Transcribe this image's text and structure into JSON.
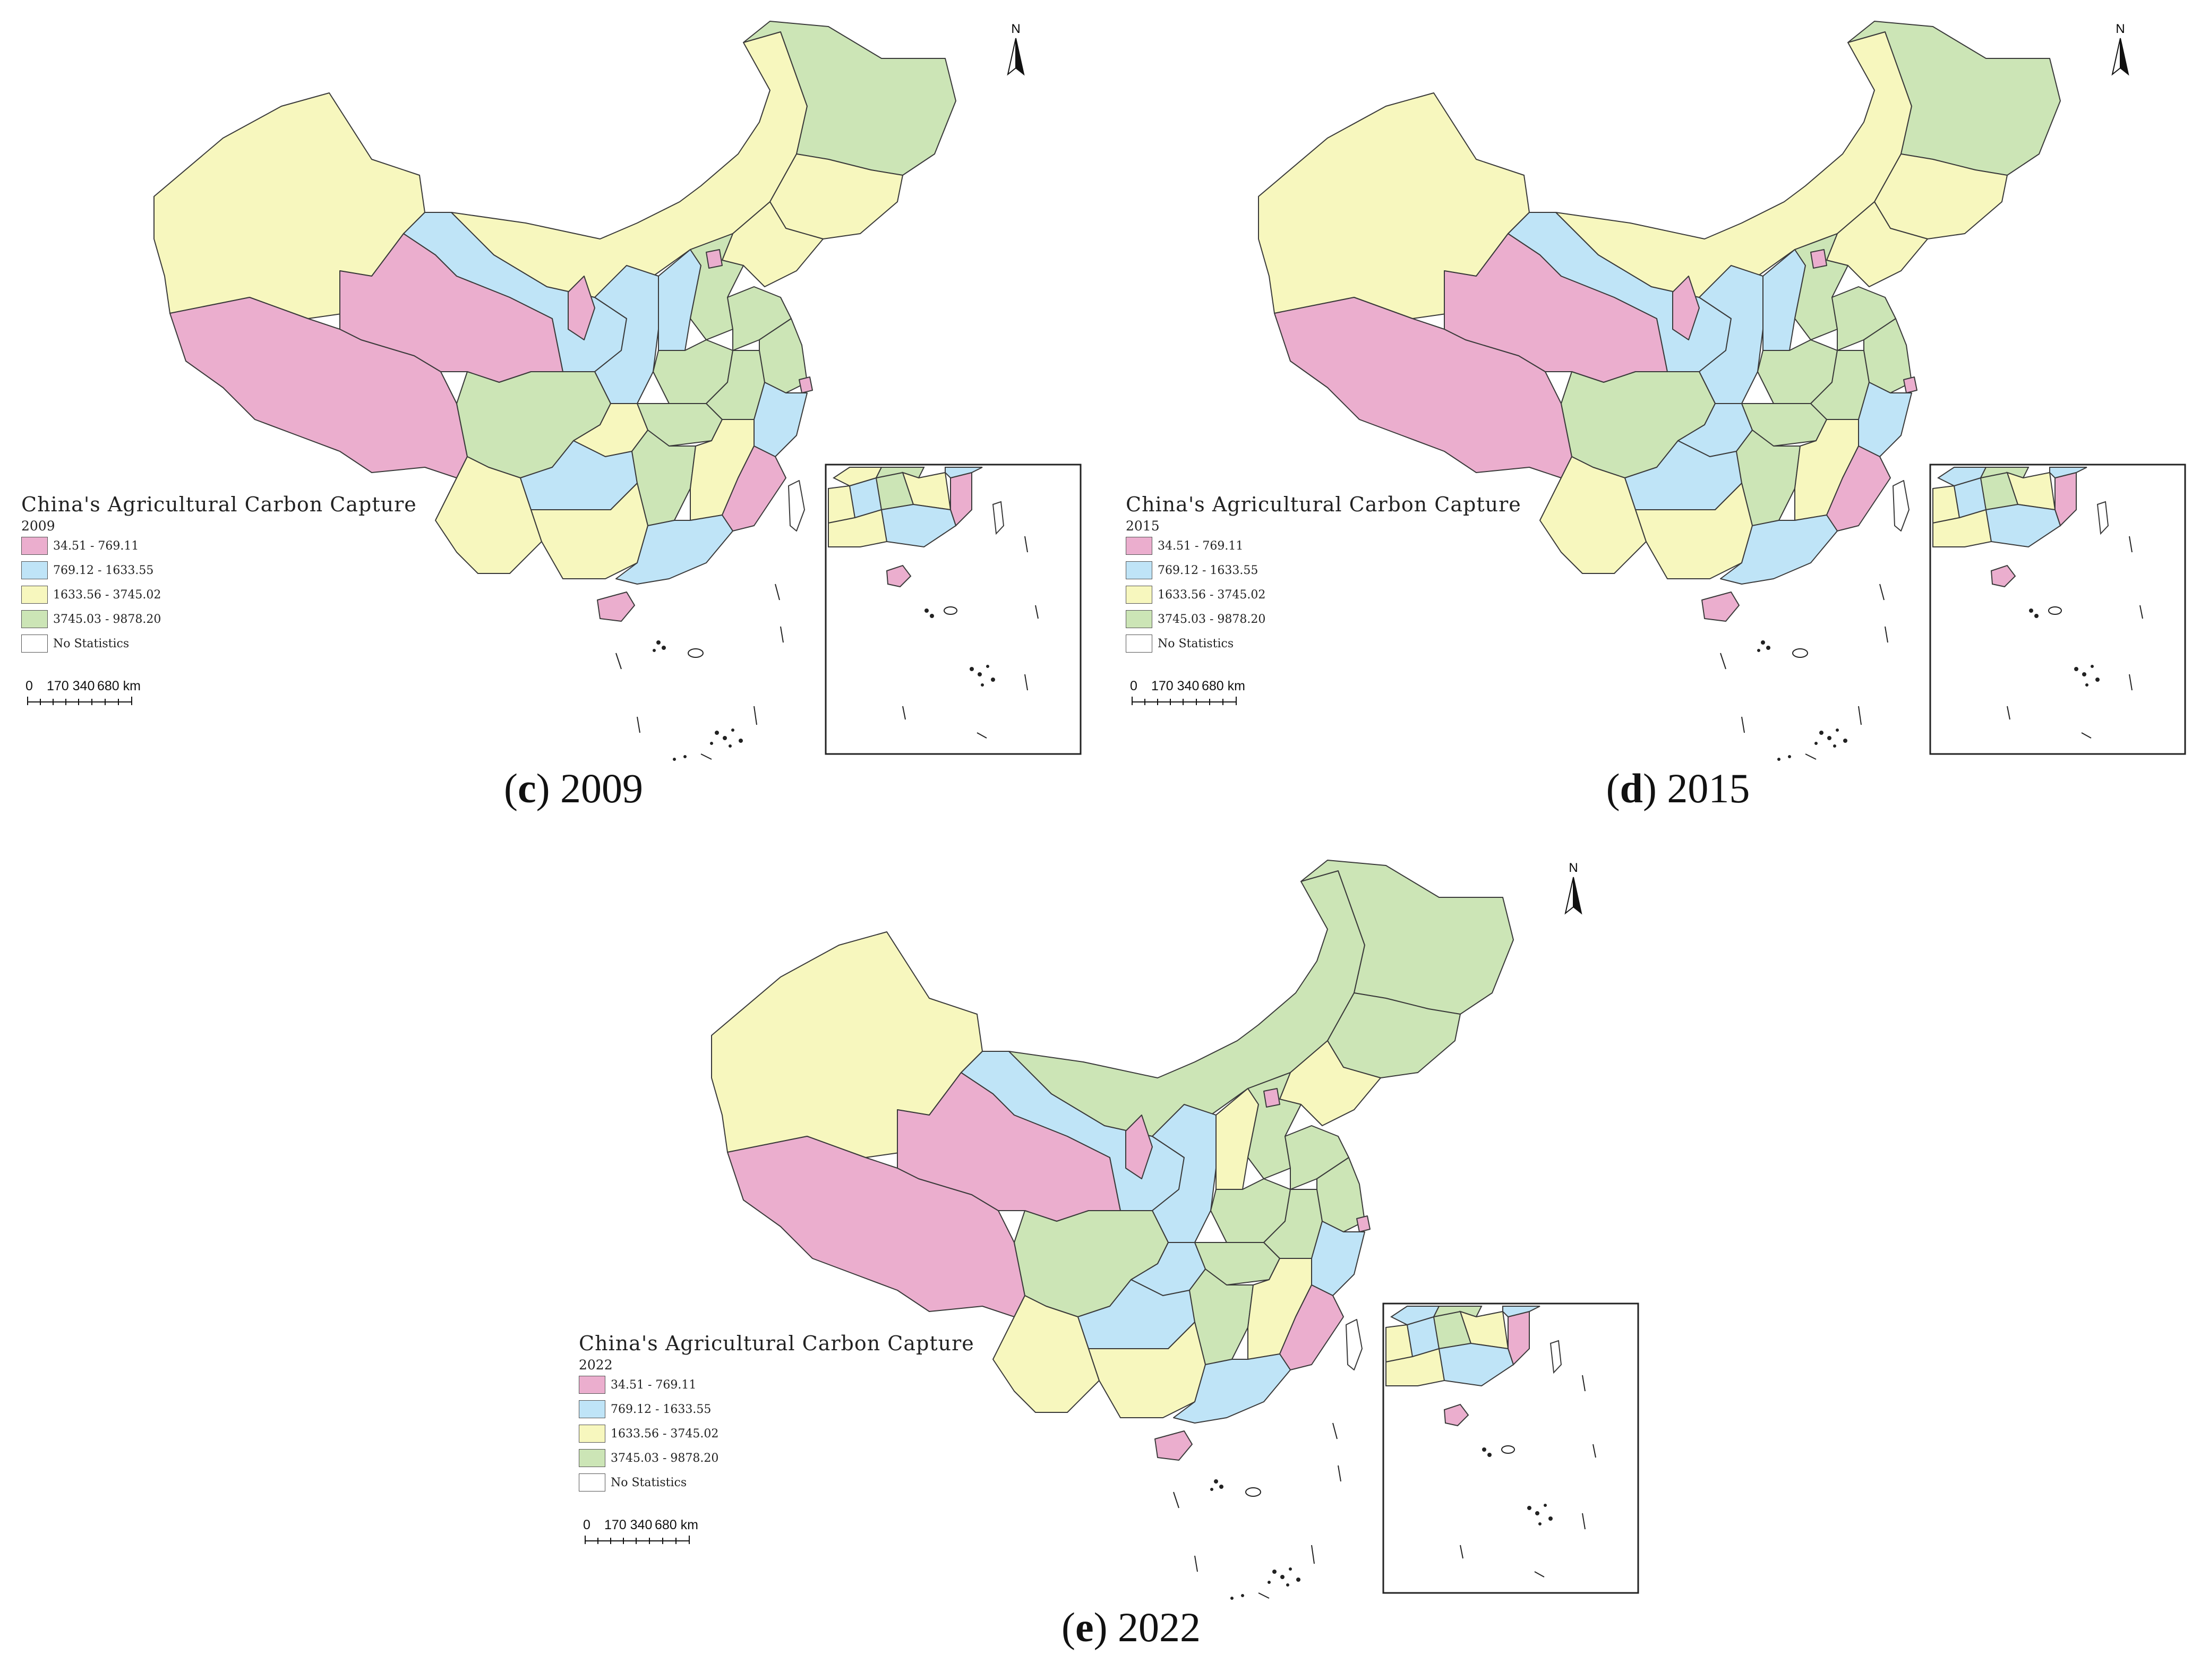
{
  "legend": {
    "title": "China's Agricultural Carbon Capture",
    "classes": [
      {
        "label": "34.51 - 769.11",
        "color": "#EBAECE"
      },
      {
        "label": "769.12 - 1633.55",
        "color": "#BFE4F7"
      },
      {
        "label": "1633.56 - 3745.02",
        "color": "#F7F7BE"
      },
      {
        "label": "3745.03 - 9878.20",
        "color": "#CCE5B6"
      },
      {
        "label": "No Statistics",
        "color": "#FFFFFF"
      }
    ]
  },
  "scale_bar": {
    "labels": [
      "0",
      "170 340",
      "680 km"
    ]
  },
  "north_label": "N",
  "panels": [
    {
      "letter": "c",
      "year": "2009",
      "colors": {
        "xinjiang": "#F7F7BE",
        "tibet": "#EBAECE",
        "qinghai": "#EBAECE",
        "gansu": "#BFE4F7",
        "inner_mongolia": "#F7F7BE",
        "heilongjiang": "#CCE5B6",
        "jilin": "#F7F7BE",
        "liaoning": "#F7F7BE",
        "ningxia": "#EBAECE",
        "shaanxi": "#BFE4F7",
        "shanxi": "#BFE4F7",
        "hebei": "#CCE5B6",
        "beijing": "#EBAECE",
        "shandong": "#CCE5B6",
        "henan": "#CCE5B6",
        "sichuan": "#CCE5B6",
        "chongqing": "#F7F7BE",
        "hubei": "#CCE5B6",
        "anhui": "#CCE5B6",
        "jiangsu": "#CCE5B6",
        "shanghai": "#EBAECE",
        "zhejiang": "#BFE4F7",
        "yunnan": "#F7F7BE",
        "guizhou": "#BFE4F7",
        "hunan": "#CCE5B6",
        "jiangxi": "#F7F7BE",
        "fujian": "#EBAECE",
        "guangxi": "#F7F7BE",
        "guangdong": "#BFE4F7",
        "hainan": "#EBAECE",
        "taiwan": "#FFFFFF"
      }
    },
    {
      "letter": "d",
      "year": "2015",
      "colors": {
        "xinjiang": "#F7F7BE",
        "tibet": "#EBAECE",
        "qinghai": "#EBAECE",
        "gansu": "#BFE4F7",
        "inner_mongolia": "#F7F7BE",
        "heilongjiang": "#CCE5B6",
        "jilin": "#F7F7BE",
        "liaoning": "#F7F7BE",
        "ningxia": "#EBAECE",
        "shaanxi": "#BFE4F7",
        "shanxi": "#BFE4F7",
        "hebei": "#CCE5B6",
        "beijing": "#EBAECE",
        "shandong": "#CCE5B6",
        "henan": "#CCE5B6",
        "sichuan": "#CCE5B6",
        "chongqing": "#BFE4F7",
        "hubei": "#CCE5B6",
        "anhui": "#CCE5B6",
        "jiangsu": "#CCE5B6",
        "shanghai": "#EBAECE",
        "zhejiang": "#BFE4F7",
        "yunnan": "#F7F7BE",
        "guizhou": "#BFE4F7",
        "hunan": "#CCE5B6",
        "jiangxi": "#F7F7BE",
        "fujian": "#EBAECE",
        "guangxi": "#F7F7BE",
        "guangdong": "#BFE4F7",
        "hainan": "#EBAECE",
        "taiwan": "#FFFFFF"
      }
    },
    {
      "letter": "e",
      "year": "2022",
      "colors": {
        "xinjiang": "#F7F7BE",
        "tibet": "#EBAECE",
        "qinghai": "#EBAECE",
        "gansu": "#BFE4F7",
        "inner_mongolia": "#CCE5B6",
        "heilongjiang": "#CCE5B6",
        "jilin": "#CCE5B6",
        "liaoning": "#F7F7BE",
        "ningxia": "#EBAECE",
        "shaanxi": "#BFE4F7",
        "shanxi": "#F7F7BE",
        "hebei": "#CCE5B6",
        "beijing": "#EBAECE",
        "shandong": "#CCE5B6",
        "henan": "#CCE5B6",
        "sichuan": "#CCE5B6",
        "chongqing": "#BFE4F7",
        "hubei": "#CCE5B6",
        "anhui": "#CCE5B6",
        "jiangsu": "#CCE5B6",
        "shanghai": "#EBAECE",
        "zhejiang": "#BFE4F7",
        "yunnan": "#F7F7BE",
        "guizhou": "#BFE4F7",
        "hunan": "#CCE5B6",
        "jiangxi": "#F7F7BE",
        "fujian": "#EBAECE",
        "guangxi": "#F7F7BE",
        "guangdong": "#BFE4F7",
        "hainan": "#EBAECE",
        "taiwan": "#FFFFFF"
      }
    }
  ]
}
